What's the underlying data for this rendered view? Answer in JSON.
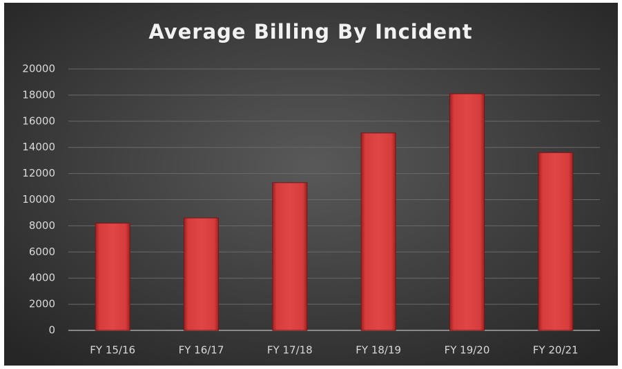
{
  "chart_data": {
    "type": "bar",
    "title": "Average Billing By Incident",
    "categories": [
      "FY 15/16",
      "FY 16/17",
      "FY 17/18",
      "FY 18/19",
      "FY 19/20",
      "FY 20/21"
    ],
    "values": [
      8200,
      8600,
      11300,
      15100,
      18100,
      13600
    ],
    "color": "#d63c3c",
    "ylim": [
      0,
      20000
    ],
    "yticks": [
      0,
      2000,
      4000,
      6000,
      8000,
      10000,
      12000,
      14000,
      16000,
      18000,
      20000
    ],
    "grid": true
  }
}
